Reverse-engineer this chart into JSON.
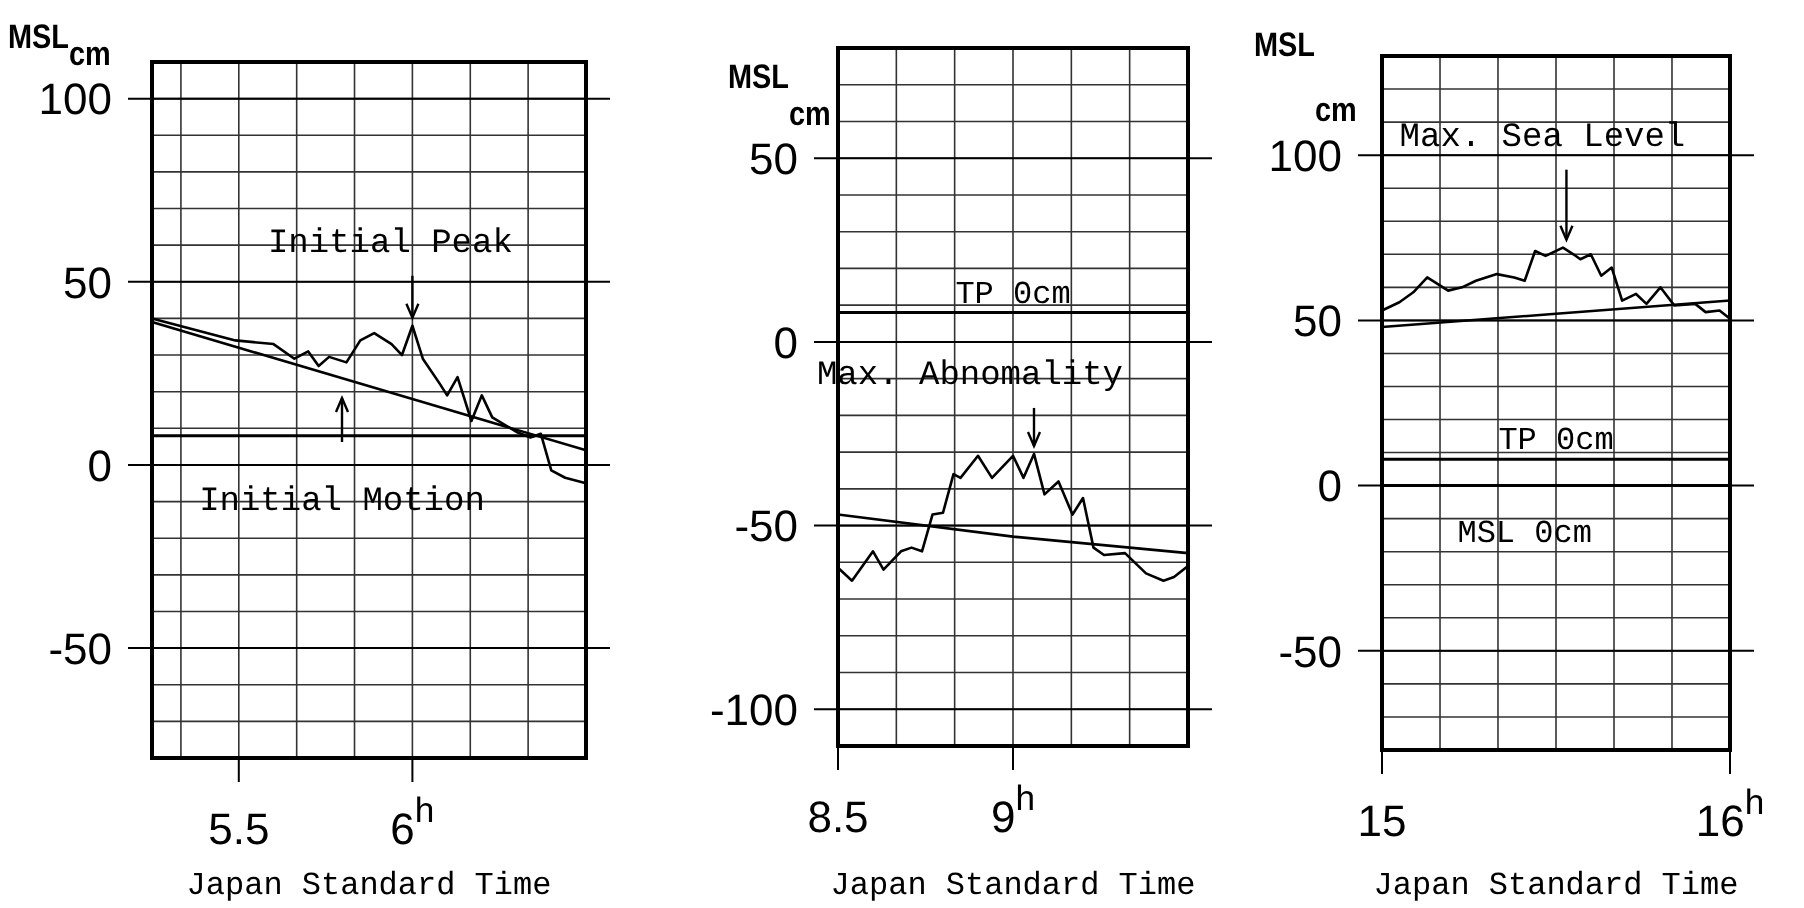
{
  "chart_data": [
    {
      "type": "line",
      "xlabel": "Japan Standard Time",
      "ylabel": "MSL$_{cm}$",
      "xlim": [
        5.25,
        6.5
      ],
      "ylim": [
        -80,
        110
      ],
      "grid": true,
      "marker": "none",
      "line_style": "solid",
      "xticks": [
        {
          "value": 5.3333,
          "label": null
        },
        5.5,
        {
          "value": 5.6667,
          "label": null
        },
        {
          "value": 5.8333,
          "label": null
        },
        {
          "value": 6,
          "label": "6$^{h}$"
        },
        {
          "value": 6.1667,
          "label": null
        },
        {
          "value": 6.3333,
          "label": null
        }
      ],
      "yticks": [
        {
          "value": -70,
          "label": null
        },
        {
          "value": -60,
          "label": null
        },
        -50,
        {
          "value": -40,
          "label": null
        },
        {
          "value": -30,
          "label": null
        },
        {
          "value": -20,
          "label": null
        },
        {
          "value": -10,
          "label": null
        },
        0,
        {
          "value": 10,
          "label": null
        },
        {
          "value": 20,
          "label": null
        },
        {
          "value": 30,
          "label": null
        },
        {
          "value": 40,
          "label": null
        },
        50,
        {
          "value": 60,
          "label": null
        },
        {
          "value": 70,
          "label": null
        },
        {
          "value": 80,
          "label": null
        },
        {
          "value": 90,
          "label": null
        },
        100
      ],
      "series": [
        {
          "color": "#000000",
          "x": [
            5.25,
            5.49,
            5.6,
            5.66,
            5.7,
            5.73,
            5.76,
            5.81,
            5.85,
            5.89,
            5.94,
            5.97,
            6.0,
            6.03,
            6.08,
            6.1,
            6.13,
            6.17,
            6.2,
            6.23,
            6.3,
            6.34,
            6.37,
            6.4,
            6.44,
            6.5
          ],
          "values": [
            40,
            34,
            33,
            29,
            31,
            27,
            29.5,
            28,
            34,
            36,
            33,
            30,
            38,
            29,
            22,
            19,
            24,
            12,
            19,
            13,
            9,
            7.5,
            8.5,
            -1.5,
            -3.5,
            -5
          ]
        },
        {
          "color": "#000000",
          "x": [
            5.25,
            5.5,
            6,
            6.5
          ],
          "values": [
            39,
            32,
            18,
            4
          ]
        }
      ],
      "ref_lines": [
        {
          "axis": "y",
          "value": 8,
          "color": "#000000"
        }
      ],
      "annotations": [
        {
          "text": "Initial Peak",
          "x": 6.0,
          "y": 38
        },
        "Initial Motion"
      ]
    },
    {
      "type": "line",
      "xlabel": "Japan Standard Time",
      "ylabel": "MSL$_{cm}$",
      "xlim": [
        8.5,
        9.5
      ],
      "ylim": [
        -110,
        80
      ],
      "grid": true,
      "marker": "none",
      "line_style": "solid",
      "xticks": [
        8.5,
        {
          "value": 8.6667,
          "label": null
        },
        {
          "value": 8.8333,
          "label": null
        },
        {
          "value": 9,
          "label": "9$^{h}$"
        },
        {
          "value": 9.1667,
          "label": null
        },
        {
          "value": 9.3333,
          "label": null
        }
      ],
      "yticks": [
        -100,
        {
          "value": -90,
          "label": null
        },
        {
          "value": -80,
          "label": null
        },
        {
          "value": -70,
          "label": null
        },
        {
          "value": -60,
          "label": null
        },
        -50,
        {
          "value": -40,
          "label": null
        },
        {
          "value": -30,
          "label": null
        },
        {
          "value": -20,
          "label": null
        },
        {
          "value": -10,
          "label": null
        },
        0,
        {
          "value": 10,
          "label": null
        },
        {
          "value": 20,
          "label": null
        },
        {
          "value": 30,
          "label": null
        },
        {
          "value": 40,
          "label": null
        },
        50,
        {
          "value": 60,
          "label": null
        },
        {
          "value": 70,
          "label": null
        }
      ],
      "series": [
        {
          "color": "#000000",
          "x": [
            8.5,
            8.54,
            8.6,
            8.63,
            8.68,
            8.71,
            8.74,
            8.77,
            8.8,
            8.83,
            8.85,
            8.9,
            8.94,
            9.0,
            9.03,
            9.06,
            9.09,
            9.13,
            9.17,
            9.2,
            9.23,
            9.26,
            9.32,
            9.38,
            9.43,
            9.46,
            9.5
          ],
          "values": [
            -61.5,
            -65,
            -57,
            -62,
            -57,
            -56,
            -57,
            -47,
            -46.5,
            -36,
            -37,
            -31,
            -37,
            -31,
            -37,
            -30.5,
            -41.5,
            -38,
            -47,
            -42.5,
            -56,
            -58,
            -57.5,
            -63,
            -65,
            -64,
            -61
          ]
        },
        {
          "color": "#000000",
          "x": [
            8.5,
            9,
            9.5
          ],
          "values": [
            -47,
            -53,
            -57.5
          ]
        }
      ],
      "ref_lines": [
        {
          "axis": "y",
          "value": 8,
          "label": "TP 0cm",
          "color": "#000000"
        }
      ],
      "annotations": [
        {
          "text": "Max. Abnomality",
          "x": 9.06,
          "y": -30.5
        }
      ]
    },
    {
      "type": "line",
      "xlabel": "Japan Standard Time",
      "ylabel": "MSL$_{cm}$",
      "xlim": [
        15,
        16
      ],
      "ylim": [
        -80,
        130
      ],
      "grid": true,
      "marker": "none",
      "line_style": "solid",
      "xticks": [
        15,
        {
          "value": 15.1667,
          "label": null
        },
        {
          "value": 15.3333,
          "label": null
        },
        {
          "value": 15.5,
          "label": null
        },
        {
          "value": 15.6667,
          "label": null
        },
        {
          "value": 15.8333,
          "label": null
        },
        {
          "value": 16,
          "label": "16$^{h}$"
        }
      ],
      "yticks": [
        {
          "value": -70,
          "label": null
        },
        {
          "value": -60,
          "label": null
        },
        -50,
        {
          "value": -40,
          "label": null
        },
        {
          "value": -30,
          "label": null
        },
        {
          "value": -20,
          "label": null
        },
        {
          "value": -10,
          "label": null
        },
        0,
        {
          "value": 10,
          "label": null
        },
        {
          "value": 20,
          "label": null
        },
        {
          "value": 30,
          "label": null
        },
        {
          "value": 40,
          "label": null
        },
        50,
        {
          "value": 60,
          "label": null
        },
        {
          "value": 70,
          "label": null
        },
        {
          "value": 80,
          "label": null
        },
        {
          "value": 90,
          "label": null
        },
        100,
        {
          "value": 110,
          "label": null
        },
        {
          "value": 120,
          "label": null
        }
      ],
      "series": [
        {
          "color": "#000000",
          "x": [
            15,
            15.05,
            15.09,
            15.13,
            15.19,
            15.23,
            15.27,
            15.33,
            15.38,
            15.41,
            15.44,
            15.47,
            15.52,
            15.55,
            15.57,
            15.6,
            15.63,
            15.66,
            15.69,
            15.73,
            15.76,
            15.8,
            15.84,
            15.9,
            15.93,
            15.97,
            16
          ],
          "values": [
            53,
            55.5,
            58.5,
            63,
            59,
            60,
            62,
            64,
            63,
            62,
            71,
            69.5,
            72,
            70,
            68.5,
            70,
            63.5,
            66,
            56,
            58,
            55,
            60,
            54.5,
            55,
            52.5,
            53,
            50.5
          ]
        },
        {
          "color": "#000000",
          "x": [
            15,
            15.5,
            16
          ],
          "values": [
            48,
            52,
            56
          ]
        }
      ],
      "ref_lines": [
        {
          "axis": "y",
          "value": 8,
          "label": "TP 0cm",
          "color": "#000000"
        },
        {
          "axis": "y",
          "value": 0,
          "label": "MSL 0cm",
          "color": "#000000"
        }
      ],
      "annotations": [
        {
          "text": "Max. Sea Level",
          "x": 15.53,
          "y": 72
        }
      ]
    }
  ]
}
